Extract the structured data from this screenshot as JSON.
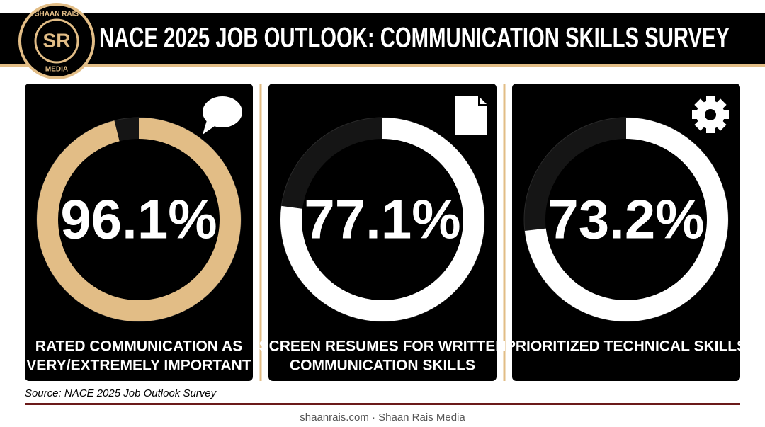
{
  "header": {
    "title": "NACE 2025 JOB OUTLOOK: COMMUNICATION SKILLS SURVEY",
    "logo": {
      "top": "SHAAN RAIS",
      "monogram": "SR",
      "bottom": "MEDIA"
    }
  },
  "chart_data": [
    {
      "type": "donut",
      "title": [
        "RATED COMMUNICATION AS",
        "VERY/EXTREMELY IMPORTANT"
      ],
      "values": [
        96.1
      ],
      "value_labels": [
        "96.1%"
      ],
      "color": "#e2bd86"
    },
    {
      "type": "donut",
      "title": [
        "SCREEN RESUMES FOR WRITTEN",
        "COMMUNICATION SKILLS"
      ],
      "values": [
        77.1
      ],
      "value_labels": [
        "77.1%"
      ],
      "color": "#ffffff"
    },
    {
      "type": "donut",
      "title": [
        "PRIORITIZED TECHNICAL SKILLS"
      ],
      "values": [
        73.2
      ],
      "value_labels": [
        "73.2%"
      ],
      "color": "#ffffff"
    }
  ],
  "source": "Source: NACE 2025 Job Outlook Survey",
  "footer": "shaanrais.com · Shaan Rais Media"
}
